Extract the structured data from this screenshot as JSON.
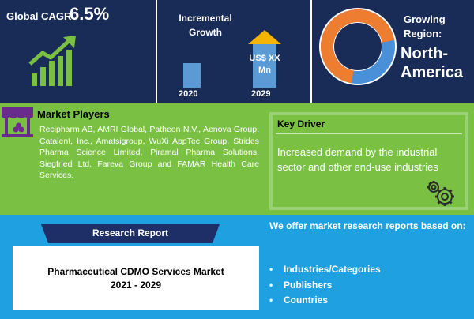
{
  "header": {
    "cagr_label": "Global CAGR",
    "cagr_value": "6.5%",
    "incremental_growth_title": "Incremental Growth",
    "bar_label": "US$ XX Mn",
    "year_start": "2020",
    "year_end": "2029",
    "region_label": "Growing Region:",
    "region_value": "North-America"
  },
  "market_players": {
    "title": "Market Players",
    "text": "Recipharm AB, AMRI Global, Patheon N.V., Aenova Group, Catalent, Inc., Amatsigroup, WuXi AppTec Group, Strides Pharma Science Limited, Piramal Pharma Solutions, Siegfried Ltd, Fareva Group and FAMAR Health Care Services."
  },
  "key_driver": {
    "title": "Key Driver",
    "text": "Increased demand by the industrial sector and other end-use industries"
  },
  "research_report": {
    "label": "Research Report",
    "title_line1": "Pharmaceutical CDMO Services Market",
    "title_line2": "2021 - 2029"
  },
  "offer": {
    "heading": "We offer market research reports based on:",
    "items": [
      "Industries/Categories",
      "Publishers",
      "Countries"
    ]
  },
  "colors": {
    "top_band": "#192b57",
    "middle_band": "#7ac143",
    "bottom_band": "#1ea0e1",
    "bar": "#5b9bd5",
    "arrow": "#f4b400",
    "donut_orange": "#ed7d31",
    "donut_blue": "#4a90d9"
  },
  "icons": [
    "growth-chart-icon",
    "market-stall-icon",
    "donut-ring-icon",
    "gears-icon"
  ]
}
